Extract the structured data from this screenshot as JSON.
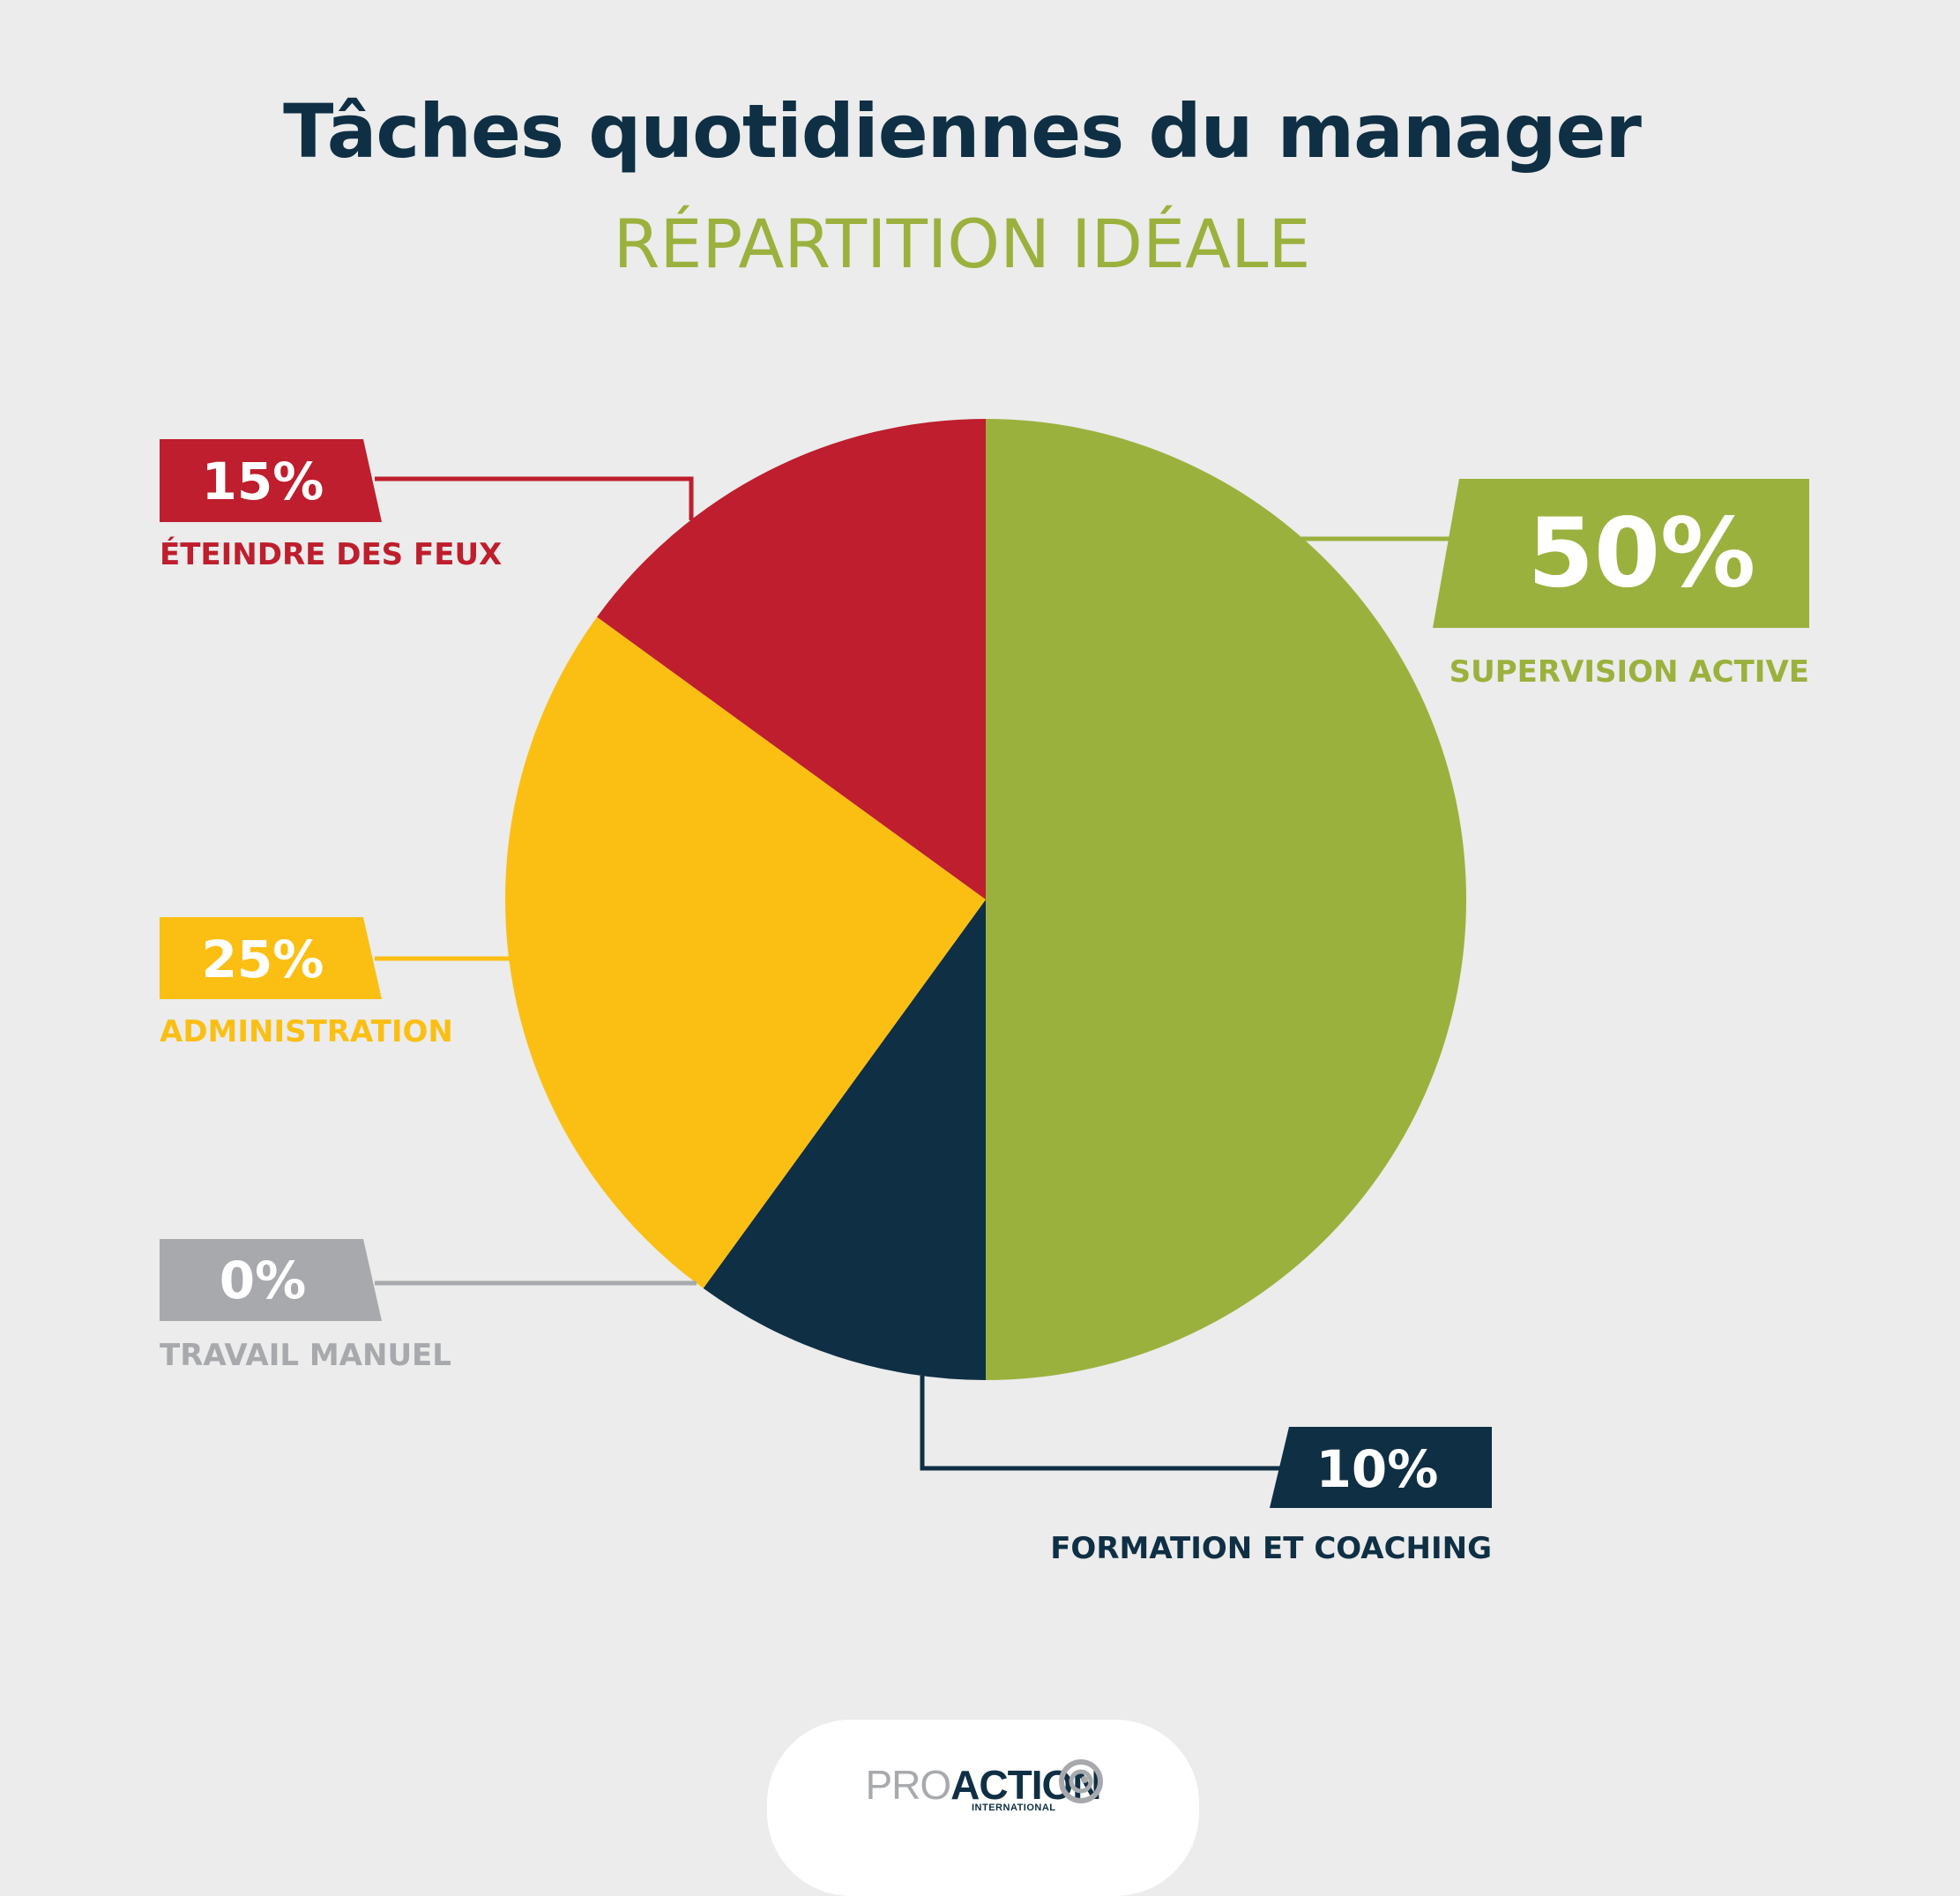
{
  "colors": {
    "background": "#EBECEB",
    "title": "#0F2F44",
    "subtitle": "#9BB13D"
  },
  "chart_data": {
    "type": "pie",
    "title": "Tâches quotidiennes du manager",
    "subtitle": "RÉPARTITION IDÉALE",
    "slices": [
      {
        "label": "SUPERVISION ACTIVE",
        "value": 50,
        "display": "50%",
        "color": "#9BB13D"
      },
      {
        "label": "FORMATION ET COACHING",
        "value": 10,
        "display": "10%",
        "color": "#0F2F44"
      },
      {
        "label": "TRAVAIL MANUEL",
        "value": 0,
        "display": "0%",
        "color": "#A7A9AC"
      },
      {
        "label": "ADMINISTRATION",
        "value": 25,
        "display": "25%",
        "color": "#FBBF14"
      },
      {
        "label": "ÉTEINDRE DES FEUX",
        "value": 15,
        "display": "15%",
        "color": "#BE1E2D"
      }
    ]
  },
  "logo": {
    "part1": "PRO",
    "part2": "ACTION",
    "sub": "INTERNATIONAL"
  }
}
